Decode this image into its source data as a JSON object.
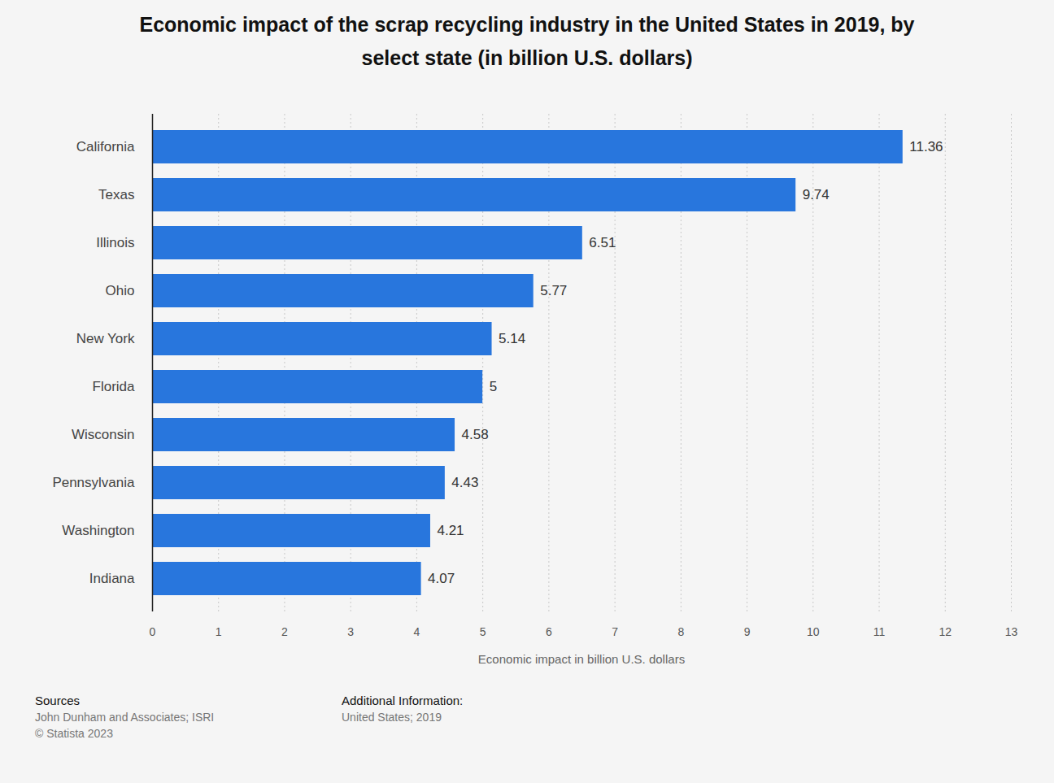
{
  "chart_data": {
    "type": "bar",
    "orientation": "horizontal",
    "title": "Economic impact of the scrap recycling industry in the United States in 2019, by select state (in billion U.S. dollars)",
    "categories": [
      "California",
      "Texas",
      "Illinois",
      "Ohio",
      "New York",
      "Florida",
      "Wisconsin",
      "Pennsylvania",
      "Washington",
      "Indiana"
    ],
    "values": [
      11.36,
      9.74,
      6.51,
      5.77,
      5.14,
      5,
      4.58,
      4.43,
      4.21,
      4.07
    ],
    "color": "#2876dd",
    "xlabel": "Economic impact in billion U.S. dollars",
    "xlim": [
      0,
      13
    ],
    "xticks": [
      0,
      1,
      2,
      3,
      4,
      5,
      6,
      7,
      8,
      9,
      10,
      11,
      12,
      13
    ],
    "grid": true,
    "data_labels": true,
    "sources_heading": "Sources",
    "sources": [
      "John Dunham and Associates; ISRI",
      "© Statista 2023"
    ],
    "additional_info_heading": "Additional Information:",
    "additional_info": [
      "United States; 2019"
    ]
  }
}
